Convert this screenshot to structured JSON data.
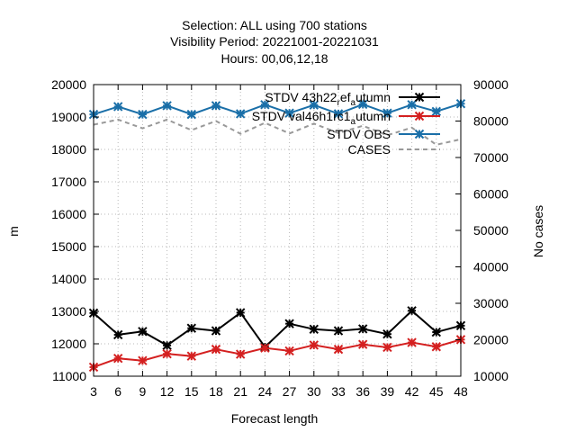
{
  "chart_data": {
    "type": "line",
    "title_lines": [
      "Selection: ALL using   700 stations",
      "Visibility   Period: 20221001-20221031",
      "Hours:  00,06,12,18"
    ],
    "xlabel": "Forecast length",
    "ylabel": "m",
    "y2label": "No cases",
    "x": [
      3,
      6,
      9,
      12,
      15,
      18,
      21,
      24,
      27,
      30,
      33,
      36,
      39,
      42,
      45,
      48
    ],
    "xlim": [
      3,
      48
    ],
    "ylim": [
      11000,
      20000
    ],
    "y2lim": [
      10000,
      90000
    ],
    "y_ticks": [
      11000,
      12000,
      13000,
      14000,
      15000,
      16000,
      17000,
      18000,
      19000,
      20000
    ],
    "y2_ticks": [
      10000,
      20000,
      30000,
      40000,
      50000,
      60000,
      70000,
      80000,
      90000
    ],
    "grid": true,
    "legend_position": "top-right",
    "series": [
      {
        "name": "STDV 43h22_ref_autumn",
        "legend_parts": [
          "STDV 43h22",
          "r",
          "ef",
          "a",
          "utumn"
        ],
        "color": "#000000",
        "style": "solid",
        "marker": "star",
        "axis": "y",
        "values": [
          12950,
          12280,
          12380,
          11950,
          12480,
          12400,
          12960,
          11900,
          12620,
          12450,
          12400,
          12460,
          12300,
          13020,
          12360,
          12560
        ]
      },
      {
        "name": "STDV val46h1rc1_autumn",
        "legend_parts": [
          "STDV val46h1rc1",
          "a",
          "utumn"
        ],
        "color": "#d42020",
        "style": "solid",
        "marker": "star",
        "axis": "y",
        "values": [
          11280,
          11550,
          11480,
          11690,
          11620,
          11830,
          11680,
          11870,
          11780,
          11960,
          11830,
          11980,
          11890,
          12040,
          11910,
          12130
        ]
      },
      {
        "name": "STDV OBS",
        "legend_parts": [
          "STDV OBS"
        ],
        "color": "#1a6fa8",
        "style": "solid",
        "marker": "star",
        "axis": "y",
        "values": [
          19080,
          19320,
          19080,
          19350,
          19080,
          19350,
          19100,
          19380,
          19120,
          19370,
          19100,
          19390,
          19120,
          19380,
          19170,
          19410
        ]
      },
      {
        "name": "CASES",
        "legend_parts": [
          "CASES"
        ],
        "color": "#999999",
        "style": "dashed",
        "marker": "none",
        "axis": "y2",
        "values": [
          79000,
          80400,
          78000,
          80400,
          77500,
          80000,
          76500,
          79500,
          76600,
          79300,
          76700,
          78700,
          76100,
          78200,
          73500,
          75000
        ]
      }
    ]
  }
}
